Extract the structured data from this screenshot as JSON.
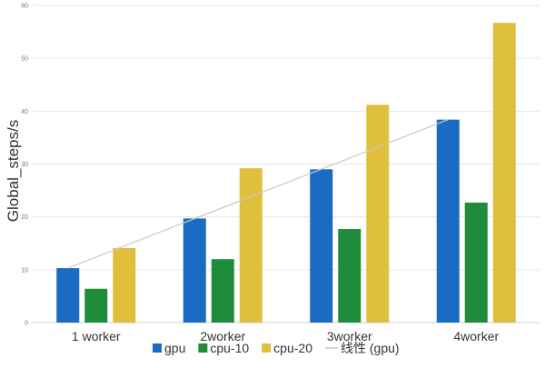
{
  "chart_data": {
    "type": "bar",
    "categories": [
      "1 worker",
      "2worker",
      "3worker",
      "4worker"
    ],
    "series": [
      {
        "name": "gpu",
        "color": "#1a6bc4",
        "values": [
          10.3,
          19.7,
          29.0,
          38.4
        ]
      },
      {
        "name": "cpu-10",
        "color": "#1e8c3a",
        "values": [
          6.4,
          12.0,
          17.7,
          22.7
        ]
      },
      {
        "name": "cpu-20",
        "color": "#e0bf3c",
        "values": [
          14.1,
          29.2,
          41.2,
          56.7
        ]
      }
    ],
    "trendline": {
      "name": "线性 (gpu)",
      "color": "#c8c8c8",
      "series": "gpu",
      "type": "linear"
    },
    "ylabel": "Global_steps/s",
    "xlabel": "",
    "ylim": [
      0,
      60
    ],
    "yticks": [
      0,
      10,
      20,
      30,
      40,
      50,
      60
    ],
    "grid": true,
    "legend_position": "bottom"
  }
}
